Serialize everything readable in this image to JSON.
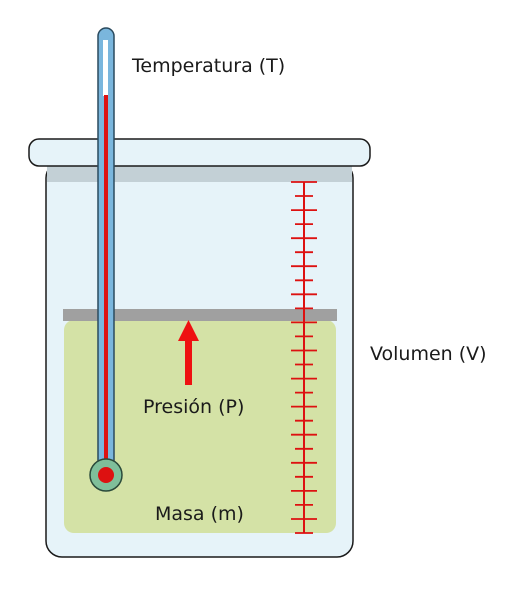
{
  "labels": {
    "temperature": "Temperatura (T)",
    "volume": "Volumen (V)",
    "pressure": "Presión (P)",
    "mass": "Masa (m)"
  },
  "colors": {
    "glass_fill": "#e6f3f9",
    "glass_stroke": "#1a1a1a",
    "lid_fill": "#e6f3f9",
    "lid_shadow": "#c3d0d6",
    "liquid": "#d4e2a6",
    "piston": "#a0a0a0",
    "scale": "#dd1111",
    "pressure_arrow": "#ee1111",
    "thermometer_tube": "#7ab6dd",
    "thermometer_bulb": "#7fbf9a",
    "mercury": "#dd1111"
  }
}
